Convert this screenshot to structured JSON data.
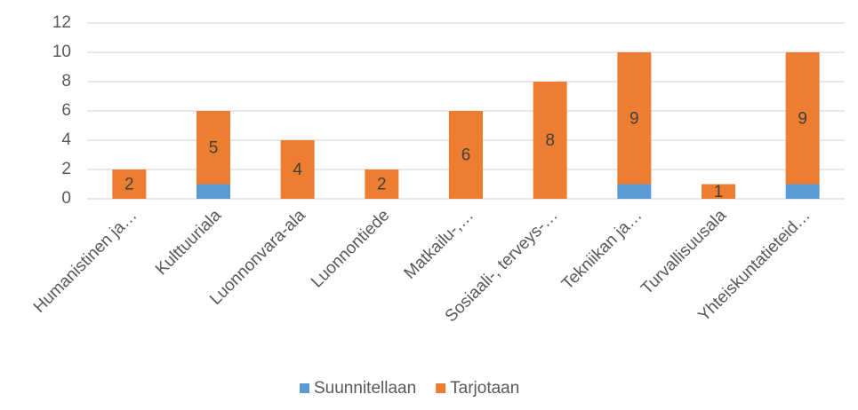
{
  "chart_data": {
    "type": "stacked_bar",
    "categories": [
      "Humanistinen ja…",
      "Kulttuuriala",
      "Luonnonvara-ala",
      "Luonnontiede",
      "Matkailu-,…",
      "Sosiaali-, terveys-…",
      "Tekniikan ja…",
      "Turvallisuusala",
      "Yhteiskuntatieteid…"
    ],
    "series": [
      {
        "name": "Suunnitellaan",
        "color": "#5b9bd5",
        "values": [
          0,
          1,
          0,
          0,
          0,
          0,
          1,
          0,
          1
        ]
      },
      {
        "name": "Tarjotaan",
        "color": "#ed7d31",
        "values": [
          2,
          5,
          4,
          2,
          6,
          8,
          9,
          1,
          9
        ]
      }
    ],
    "ylim": [
      0,
      12
    ],
    "yticks": [
      0,
      2,
      4,
      6,
      8,
      10,
      12
    ],
    "grid": true,
    "legend": "bottom"
  }
}
